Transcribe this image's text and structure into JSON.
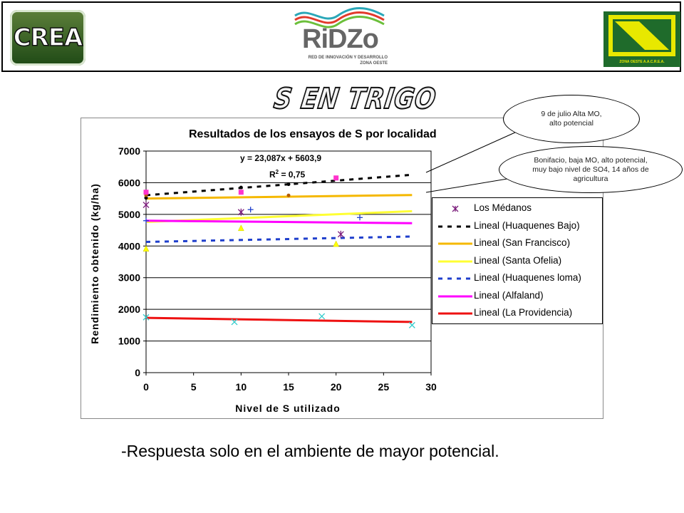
{
  "header": {
    "logo_left_text": "CREA",
    "logo_center_text": "RiDZo",
    "logo_center_subtitle": "RED DE INNOVACIÓN Y DESARROLLO ZONA OESTE",
    "logo_right_text": "ZONA OESTE A.A.C.R.E.A."
  },
  "slide_title": "S EN TRIGO",
  "annotations": {
    "nine_de_julio": "9 de julio Alta MO, alto potencial",
    "bonifacio": "Bonifacio, baja MO, alto potencial, muy bajo nivel de SO4, 14 años de agricultura"
  },
  "caption": "-Respuesta solo en el ambiente de mayor potencial.",
  "chart_data": {
    "type": "scatter",
    "title": "Resultados de los ensayos de S por localidad",
    "xlabel": "Nivel de S utilizado",
    "ylabel": "Rendimiento obtenido (kg/ha)",
    "xlim": [
      0,
      30
    ],
    "ylim": [
      0,
      7000
    ],
    "x_ticks": [
      "0",
      "5",
      "10",
      "15",
      "20",
      "25",
      "30"
    ],
    "y_ticks": [
      "0",
      "1000",
      "2000",
      "3000",
      "4000",
      "5000",
      "6000",
      "7000"
    ],
    "grid": "horizontal",
    "legend_position": "right",
    "equation": "y = 23,087x + 5603,9",
    "r_squared_label": "R",
    "r_squared_value": "= 0,75",
    "series": [
      {
        "name": "Los Médanos",
        "kind": "points",
        "marker": "asterisk",
        "color": "#7a1a7a",
        "points": [
          [
            0,
            5300
          ],
          [
            10,
            5070
          ],
          [
            20.5,
            4370
          ]
        ]
      },
      {
        "name": "Lineal (Huaquenes Bajo)",
        "kind": "trend",
        "style": "dashed",
        "color": "#000000",
        "line": [
          [
            0,
            5604
          ],
          [
            28,
            6250
          ]
        ],
        "points": [
          [
            0,
            5520
          ],
          [
            10,
            5850
          ],
          [
            15,
            5950
          ],
          [
            20,
            6150
          ]
        ]
      },
      {
        "name": "Lineal (San Francisco)",
        "kind": "trend",
        "style": "solid",
        "color": "#f5b800",
        "line": [
          [
            0,
            5500
          ],
          [
            28,
            5610
          ]
        ],
        "points": [
          [
            0,
            5600
          ],
          [
            15,
            5600
          ]
        ]
      },
      {
        "name": "Lineal (Santa Ofelia)",
        "kind": "trend",
        "style": "solid",
        "color": "#ffff33",
        "line": [
          [
            0,
            4760
          ],
          [
            28,
            5100
          ]
        ],
        "points": [
          [
            0,
            3900
          ],
          [
            10,
            4550
          ],
          [
            20,
            4050
          ]
        ]
      },
      {
        "name": "Lineal (Huaquenes loma)",
        "kind": "trend",
        "style": "dashed",
        "color": "#1f3fcc",
        "line": [
          [
            0,
            4130
          ],
          [
            28,
            4300
          ]
        ],
        "points": [
          [
            0,
            4800
          ],
          [
            11,
            5150
          ],
          [
            22.5,
            4900
          ]
        ]
      },
      {
        "name": "Lineal (Alfaland)",
        "kind": "trend",
        "style": "solid",
        "color": "#ff00ff",
        "line": [
          [
            0,
            4800
          ],
          [
            28,
            4720
          ]
        ],
        "points": [
          [
            0,
            5700
          ],
          [
            10,
            5700
          ],
          [
            20,
            6150
          ]
        ]
      },
      {
        "name": "Lineal (La Providencia)",
        "kind": "trend",
        "style": "solid",
        "color": "#ee1111",
        "line": [
          [
            0,
            1730
          ],
          [
            28,
            1600
          ]
        ],
        "points": [
          [
            0,
            1750
          ],
          [
            9.3,
            1600
          ],
          [
            18.5,
            1780
          ],
          [
            28,
            1500
          ]
        ]
      }
    ]
  }
}
